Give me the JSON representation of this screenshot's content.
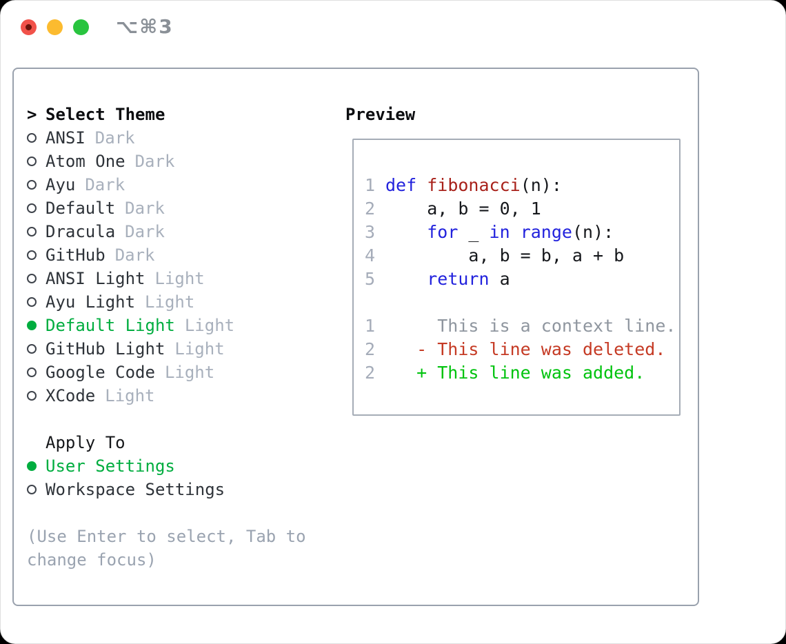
{
  "window": {
    "title": "⌥⌘3"
  },
  "colors": {
    "selected_green": "#00ad3f",
    "keyword_blue": "#2222dd",
    "function_red": "#a8211a",
    "deleted_red": "#c53a24",
    "added_green": "#00c30e",
    "dim_gray": "#a8b0bc",
    "panel_border": "#99a1ad",
    "traffic_red": "#f1524a",
    "traffic_yellow": "#fcbb2f",
    "traffic_green": "#29c43f"
  },
  "theme_list": {
    "header_marker": ">",
    "header": "Select Theme",
    "items": [
      {
        "name": "ANSI",
        "variant": "Dark",
        "selected": false
      },
      {
        "name": "Atom One",
        "variant": "Dark",
        "selected": false
      },
      {
        "name": "Ayu",
        "variant": "Dark",
        "selected": false
      },
      {
        "name": "Default",
        "variant": "Dark",
        "selected": false
      },
      {
        "name": "Dracula",
        "variant": "Dark",
        "selected": false
      },
      {
        "name": "GitHub",
        "variant": "Dark",
        "selected": false
      },
      {
        "name": "ANSI Light",
        "variant": "Light",
        "selected": false
      },
      {
        "name": "Ayu Light",
        "variant": "Light",
        "selected": false
      },
      {
        "name": "Default Light",
        "variant": "Light",
        "selected": true
      },
      {
        "name": "GitHub Light",
        "variant": "Light",
        "selected": false
      },
      {
        "name": "Google Code",
        "variant": "Light",
        "selected": false
      },
      {
        "name": "XCode",
        "variant": "Light",
        "selected": false
      }
    ]
  },
  "apply_to": {
    "header": "Apply To",
    "items": [
      {
        "name": "User Settings",
        "selected": true
      },
      {
        "name": "Workspace Settings",
        "selected": false
      }
    ]
  },
  "hint": "(Use Enter to select, Tab to change focus)",
  "preview": {
    "header": "Preview",
    "lines": [
      {
        "num": "1",
        "tokens": [
          [
            "def",
            "kw"
          ],
          [
            " ",
            ""
          ],
          [
            "fibonacci",
            "fn"
          ],
          [
            "(n):",
            ""
          ]
        ]
      },
      {
        "num": "2",
        "tokens": [
          [
            "    a, b = 0, 1",
            ""
          ]
        ]
      },
      {
        "num": "3",
        "tokens": [
          [
            "    ",
            ""
          ],
          [
            "for",
            "kw"
          ],
          [
            " _ ",
            ""
          ],
          [
            "in",
            "kw"
          ],
          [
            " ",
            ""
          ],
          [
            "range",
            "kw"
          ],
          [
            "(n):",
            ""
          ]
        ]
      },
      {
        "num": "4",
        "tokens": [
          [
            "        a, b = b, a + b",
            ""
          ]
        ]
      },
      {
        "num": "5",
        "tokens": [
          [
            "    ",
            ""
          ],
          [
            "return",
            "kw"
          ],
          [
            " a",
            ""
          ]
        ]
      },
      {
        "num": "",
        "tokens": []
      },
      {
        "num": "1",
        "tokens": [
          [
            "     This is a context line.",
            "ctx"
          ]
        ]
      },
      {
        "num": "2",
        "tokens": [
          [
            "   - This line was deleted.",
            "del"
          ]
        ]
      },
      {
        "num": "2",
        "tokens": [
          [
            "   + This line was added.",
            "add"
          ]
        ]
      }
    ]
  }
}
